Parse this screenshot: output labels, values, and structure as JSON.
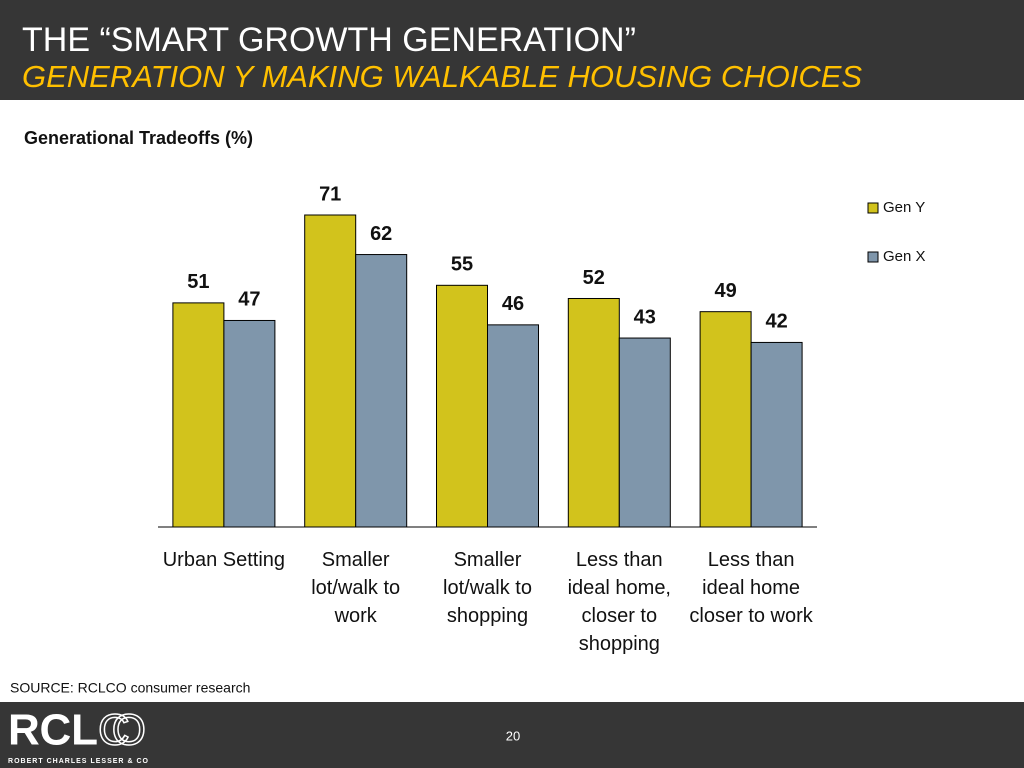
{
  "header": {
    "title": "THE “SMART GROWTH GENERATION”",
    "subtitle": "GENERATION Y MAKING WALKABLE HOUSING CHOICES"
  },
  "chart_data": {
    "type": "bar",
    "title": "Generational Tradeoffs (%)",
    "categories": [
      "Urban Setting",
      "Smaller lot/walk to work",
      "Smaller lot/walk to shopping",
      "Less than ideal home, closer to shopping",
      "Less than ideal home closer to work"
    ],
    "series": [
      {
        "name": "Gen Y",
        "color": "#d2c31c",
        "values": [
          51,
          71,
          55,
          52,
          49
        ]
      },
      {
        "name": "Gen X",
        "color": "#7f96ab",
        "values": [
          47,
          62,
          46,
          43,
          42
        ]
      }
    ],
    "legend": "right"
  },
  "footer": {
    "source": "SOURCE: RCLCO consumer research",
    "page": "20",
    "logo_bold": "RCL",
    "logo_outline": "CO",
    "logo_tagline": "ROBERT CHARLES LESSER & CO"
  }
}
